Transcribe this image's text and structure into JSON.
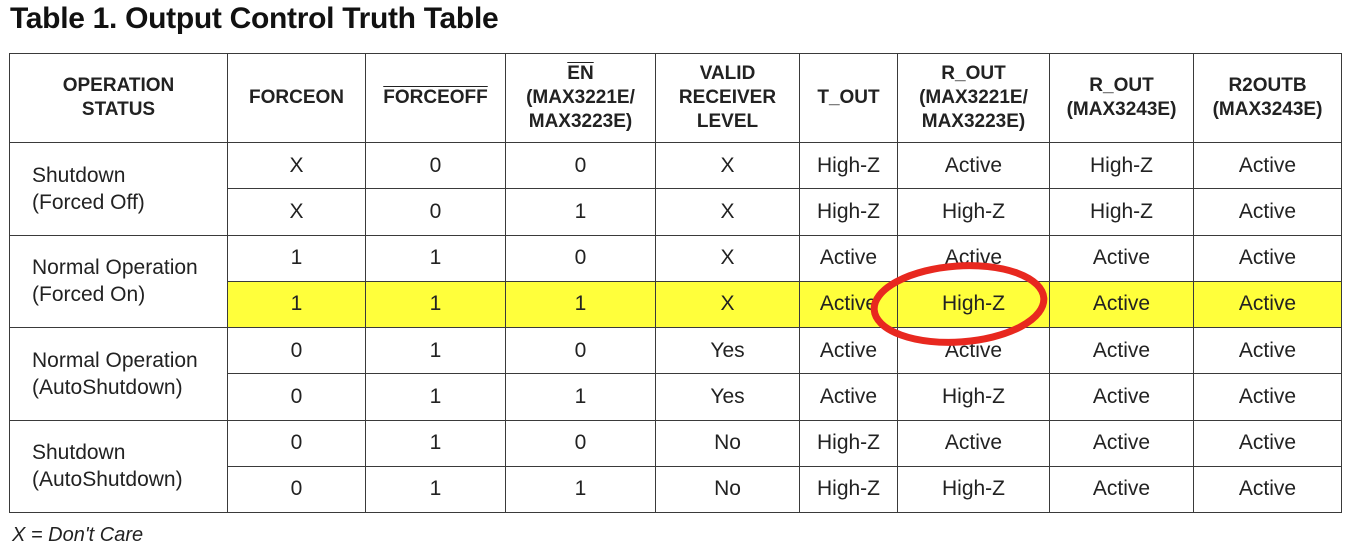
{
  "title": "Table 1. Output Control Truth Table",
  "headers": [
    {
      "line1": "OPERATION",
      "line2": "STATUS",
      "line3": "",
      "overline": false
    },
    {
      "line1": "FORCEON",
      "line2": "",
      "line3": "",
      "overline": false
    },
    {
      "line1": "FORCEOFF",
      "line2": "",
      "line3": "",
      "overline": true
    },
    {
      "line1": "EN",
      "line2": "(MAX3221E/",
      "line3": "MAX3223E)",
      "overline": true
    },
    {
      "line1": "VALID",
      "line2": "RECEIVER",
      "line3": "LEVEL",
      "overline": false
    },
    {
      "line1": "T_OUT",
      "line2": "",
      "line3": "",
      "overline": false
    },
    {
      "line1": "R_OUT",
      "line2": "(MAX3221E/",
      "line3": "MAX3223E)",
      "overline": false
    },
    {
      "line1": "R_OUT",
      "line2": "(MAX3243E)",
      "line3": "",
      "overline": false
    },
    {
      "line1": "R2OUTB",
      "line2": "(MAX3243E)",
      "line3": "",
      "overline": false
    }
  ],
  "groups": [
    {
      "status_line1": "Shutdown",
      "status_line2": "(Forced Off)",
      "rows": [
        [
          "X",
          "0",
          "0",
          "X",
          "High-Z",
          "Active",
          "High-Z",
          "Active"
        ],
        [
          "X",
          "0",
          "1",
          "X",
          "High-Z",
          "High-Z",
          "High-Z",
          "Active"
        ]
      ]
    },
    {
      "status_line1": "Normal Operation",
      "status_line2": "(Forced On)",
      "rows": [
        [
          "1",
          "1",
          "0",
          "X",
          "Active",
          "Active",
          "Active",
          "Active"
        ],
        [
          "1",
          "1",
          "1",
          "X",
          "Active",
          "High-Z",
          "Active",
          "Active"
        ]
      ]
    },
    {
      "status_line1": "Normal Operation",
      "status_line2": "(AutoShutdown)",
      "rows": [
        [
          "0",
          "1",
          "0",
          "Yes",
          "Active",
          "Active",
          "Active",
          "Active"
        ],
        [
          "0",
          "1",
          "1",
          "Yes",
          "Active",
          "High-Z",
          "Active",
          "Active"
        ]
      ]
    },
    {
      "status_line1": "Shutdown",
      "status_line2": "(AutoShutdown)",
      "rows": [
        [
          "0",
          "1",
          "0",
          "No",
          "High-Z",
          "Active",
          "Active",
          "Active"
        ],
        [
          "0",
          "1",
          "1",
          "No",
          "High-Z",
          "High-Z",
          "Active",
          "Active"
        ]
      ]
    }
  ],
  "highlight": {
    "group": 1,
    "row": 1,
    "color": "#ffff3b"
  },
  "annotation_color": "#e8281f",
  "footnote": "X = Don't Care"
}
